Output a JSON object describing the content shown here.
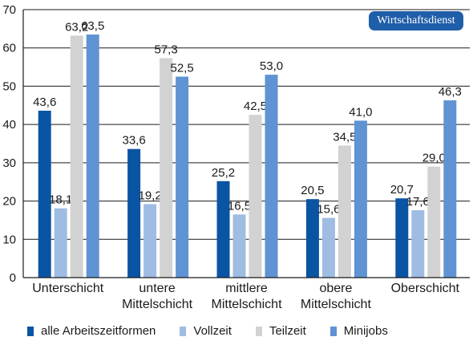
{
  "badge": {
    "label": "Wirtschaftsdienst",
    "color": "#1f5ea8"
  },
  "chart_data": {
    "type": "bar",
    "categories": [
      [
        "Unterschicht"
      ],
      [
        "untere",
        "Mittelschicht"
      ],
      [
        "mittlere",
        "Mittelschicht"
      ],
      [
        "obere",
        "Mittelschicht"
      ],
      [
        "Oberschicht"
      ]
    ],
    "series": [
      {
        "name": "alle Arbeitszeitformen",
        "color": "#0a55a3",
        "values": [
          43.6,
          33.6,
          25.2,
          20.5,
          20.7
        ],
        "labels": [
          "43,6",
          "33,6",
          "25,2",
          "20,5",
          "20,7"
        ]
      },
      {
        "name": "Vollzeit",
        "color": "#9fbce3",
        "values": [
          18.1,
          19.2,
          16.5,
          15.6,
          17.6
        ],
        "labels": [
          "18,1",
          "19,2",
          "16,5",
          "15,6",
          "17,6"
        ]
      },
      {
        "name": "Teilzeit",
        "color": "#d2d2d2",
        "values": [
          63.2,
          57.3,
          42.5,
          34.5,
          29.0
        ],
        "labels": [
          "63,2",
          "57,3",
          "42,5",
          "34,5",
          "29,0"
        ]
      },
      {
        "name": "Minijobs",
        "color": "#5f93d3",
        "values": [
          63.5,
          52.5,
          53.0,
          41.0,
          46.3
        ],
        "labels": [
          "63,5",
          "52,5",
          "53,0",
          "41,0",
          "46,3"
        ]
      }
    ],
    "yticks": [
      0,
      10,
      20,
      30,
      40,
      50,
      60,
      70
    ],
    "ylim": [
      0,
      70
    ],
    "grid": true,
    "legend_position": "bottom"
  }
}
